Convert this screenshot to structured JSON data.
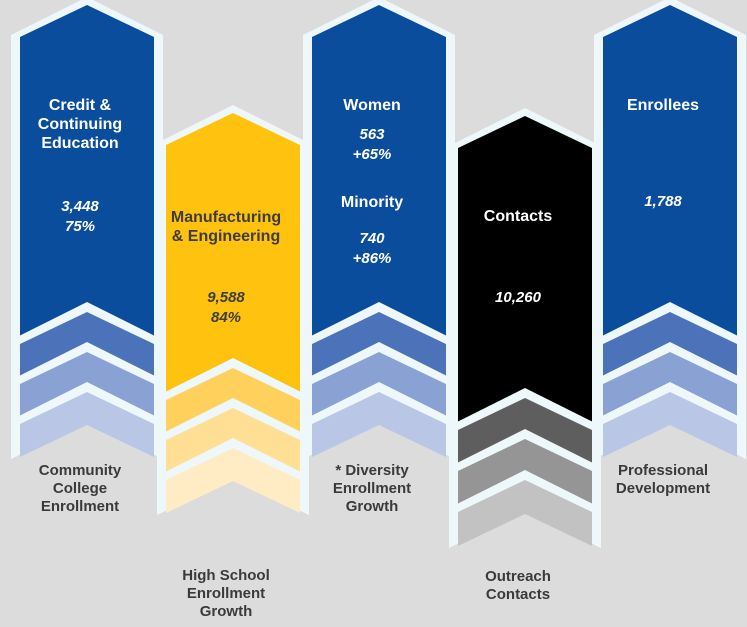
{
  "columns": [
    {
      "id": "community-college",
      "main_color": "#0a4d9c",
      "text_color": "#ffffff",
      "band_colors": [
        "#4c73ba",
        "#8aa2d3",
        "#b9c6e5"
      ],
      "items": [
        {
          "label": "Credit &\nContinuing\nEducation",
          "values": [
            "3,448",
            "75%"
          ]
        }
      ],
      "footer": "Community\nCollege\nEnrollment"
    },
    {
      "id": "high-school",
      "main_color": "#ffc20e",
      "text_color": "#3d3d3d",
      "band_colors": [
        "#ffd15c",
        "#ffdf94",
        "#ffecc4"
      ],
      "items": [
        {
          "label": "Manufacturing\n& Engineering",
          "values": [
            "9,588",
            "84%"
          ]
        }
      ],
      "footer": "High School\nEnrollment\nGrowth"
    },
    {
      "id": "diversity",
      "main_color": "#0a4d9c",
      "text_color": "#ffffff",
      "band_colors": [
        "#4c73ba",
        "#8aa2d3",
        "#b9c6e5"
      ],
      "items": [
        {
          "label": "Women",
          "values": [
            "563",
            "+65%"
          ]
        },
        {
          "label": "Minority",
          "values": [
            "740",
            "+86%"
          ]
        }
      ],
      "footer": "* Diversity\nEnrollment\nGrowth"
    },
    {
      "id": "outreach",
      "main_color": "#000000",
      "text_color": "#ffffff",
      "band_colors": [
        "#5e5e5e",
        "#959595",
        "#c2c2c2"
      ],
      "items": [
        {
          "label": "Contacts",
          "values": [
            "10,260"
          ]
        }
      ],
      "footer": "Outreach\nContacts"
    },
    {
      "id": "professional",
      "main_color": "#0a4d9c",
      "text_color": "#ffffff",
      "band_colors": [
        "#4c73ba",
        "#8aa2d3",
        "#b9c6e5"
      ],
      "items": [
        {
          "label": "Enrollees",
          "values": [
            "1,788"
          ]
        }
      ],
      "footer": "Professional\nDevelopment"
    }
  ]
}
